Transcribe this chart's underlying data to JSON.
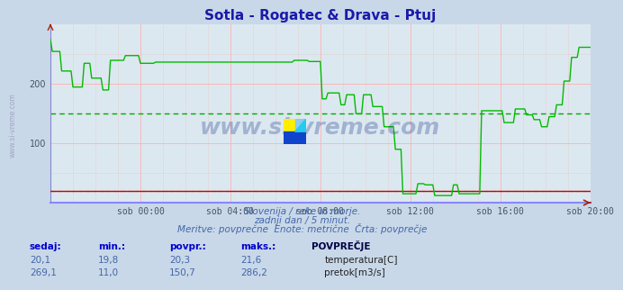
{
  "title": "Sotla - Rogatec & Drava - Ptuj",
  "title_color": "#1a1aaa",
  "bg_color": "#c8d8e8",
  "plot_bg": "#dce8f0",
  "grid_major_color": "#ffb0b0",
  "grid_minor_color": "#c8d8e8",
  "xlim": [
    0,
    288
  ],
  "ylim": [
    0,
    300
  ],
  "yticks": [
    100,
    200
  ],
  "xtick_labels": [
    "sob 00:00",
    "sob 04:00",
    "sob 08:00",
    "sob 12:00",
    "sob 16:00",
    "sob 20:00"
  ],
  "xtick_positions": [
    48,
    96,
    144,
    192,
    240,
    288
  ],
  "watermark": "www.si-vreme.com",
  "watermark_color": "#1a3a8a",
  "subtitle_lines": [
    "Slovenija / reke in morje.",
    "zadnji dan / 5 minut.",
    "Meritve: povprečne  Enote: metrične  Črta: povprečje"
  ],
  "table_headers": [
    "sedaj:",
    "min.:",
    "povpr.:",
    "maks.:",
    "POVPREČJE"
  ],
  "row1": [
    "20,1",
    "19,8",
    "20,3",
    "21,6"
  ],
  "row1_label": "temperatura[C]",
  "row1_color": "#cc0000",
  "row2": [
    "269,1",
    "11,0",
    "150,7",
    "286,2"
  ],
  "row2_label": "pretok[m3/s]",
  "row2_color": "#00cc00",
  "temp_avg": 20.3,
  "flow_avg": 150.7,
  "temp_line_color": "#cc0000",
  "flow_line_color": "#00bb00",
  "temp_avg_color": "#cc0000",
  "flow_avg_color": "#00aa00",
  "axis_spine_color": "#8888cc",
  "bottom_spine_color": "#8888ff",
  "left_label_color": "#9999bb"
}
